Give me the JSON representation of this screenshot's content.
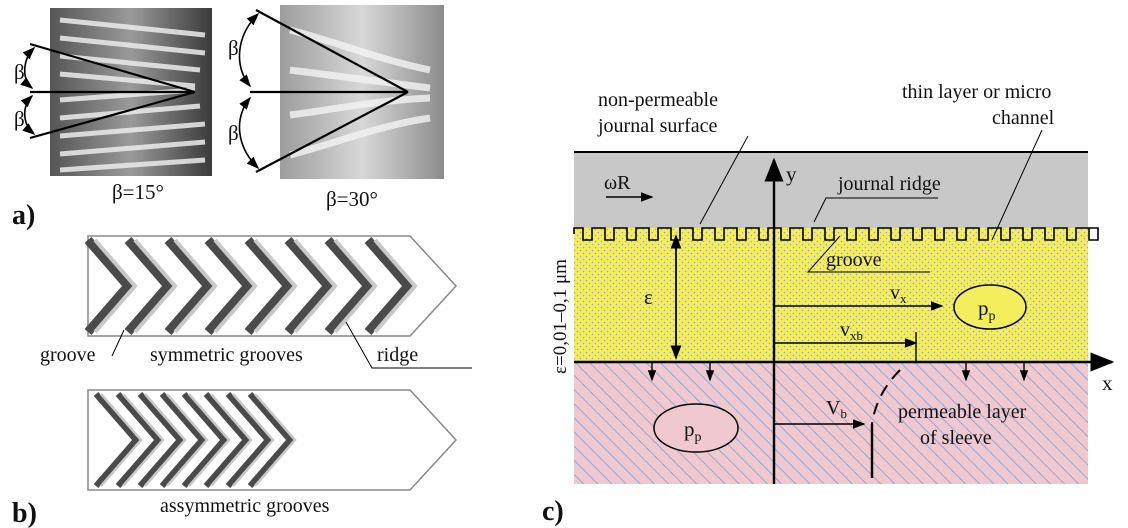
{
  "panel_a": {
    "label": "a)",
    "beta_symbol": "β",
    "left_caption": "β=15°",
    "right_caption": "β=30°"
  },
  "panel_b": {
    "label": "b)",
    "label_groove": "groove",
    "label_symmetric": "symmetric grooves",
    "label_ridge": "ridge",
    "label_asymmetric": "assymmetric grooves"
  },
  "panel_c": {
    "label": "c)",
    "non_permeable_1": "non-permeable",
    "non_permeable_2": "journal surface",
    "thin_layer_1": "thin layer  or micro",
    "thin_layer_2": "channel",
    "omega_r": "ωR",
    "axis_y": "y",
    "axis_x": "x",
    "journal_ridge": "journal ridge",
    "groove": "groove",
    "epsilon": "ε",
    "epsilon_range": "ε=0,01–0,1 μm",
    "vx_main": "v",
    "vx_sub": "x",
    "vxb_main": "v",
    "vxb_sub": "xb",
    "vb_main": "V",
    "vb_sub": "b",
    "pp_main": "p",
    "pp_sub": "p",
    "permeable_1": "permeable layer",
    "permeable_2": "of sleeve"
  },
  "colors": {
    "journal_gray": "#c8c8c8",
    "lubricant_yellow": "#f2ee5c",
    "sleeve_pink": "#f0c8d0",
    "sleeve_hatch": "#8fa8d8"
  }
}
